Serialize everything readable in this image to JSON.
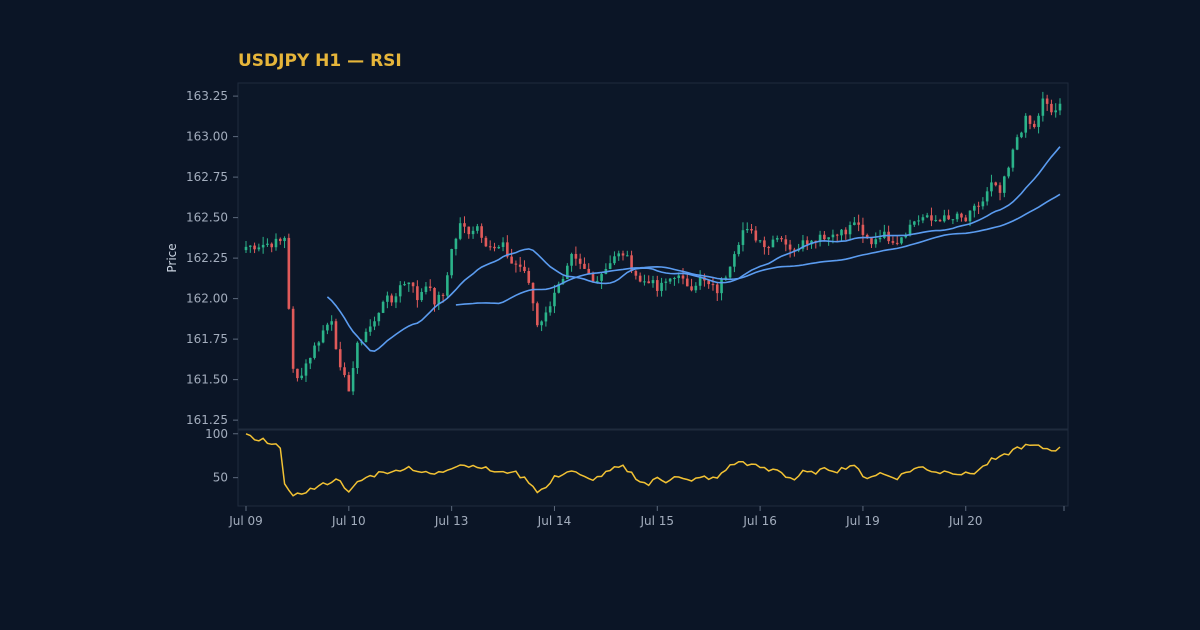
{
  "chart_data": {
    "type": "candlestick",
    "title": "USDJPY H1 — RSI",
    "ylabel": "Price",
    "colors": {
      "background": "#0b1526",
      "plot_background": "#0c1728",
      "border": "#1f2b3d",
      "title": "#e6b53a",
      "up": "#2bb38a",
      "down": "#e05a5a",
      "ma": "#5b9cf0",
      "rsi": "#f2c234"
    },
    "price_axis": {
      "ylim": [
        161.22,
        163.3
      ],
      "ticks": [
        "161.25",
        "161.50",
        "161.75",
        "162.00",
        "162.25",
        "162.50",
        "162.75",
        "163.00",
        "163.25"
      ]
    },
    "rsi_axis": {
      "ylim": [
        20,
        102
      ],
      "ticks": [
        "50",
        "100"
      ]
    },
    "x_ticks": [
      "Jul 09",
      "Jul 10",
      "Jul 13",
      "Jul 14",
      "Jul 15",
      "Jul 16",
      "Jul 19",
      "Jul 20"
    ],
    "x_tick_candle_index": [
      0,
      24,
      48,
      72,
      96,
      120,
      144,
      168
    ],
    "close_anchors": [
      [
        0,
        162.32
      ],
      [
        8,
        162.35
      ],
      [
        9,
        162.38
      ],
      [
        10,
        161.95
      ],
      [
        11,
        161.55
      ],
      [
        12,
        161.5
      ],
      [
        14,
        161.6
      ],
      [
        16,
        161.7
      ],
      [
        18,
        161.8
      ],
      [
        20,
        161.88
      ],
      [
        22,
        161.55
      ],
      [
        24,
        161.45
      ],
      [
        26,
        161.7
      ],
      [
        28,
        161.8
      ],
      [
        30,
        161.85
      ],
      [
        32,
        162.0
      ],
      [
        34,
        161.98
      ],
      [
        36,
        162.08
      ],
      [
        38,
        162.12
      ],
      [
        40,
        162.0
      ],
      [
        42,
        162.1
      ],
      [
        44,
        161.98
      ],
      [
        46,
        162.02
      ],
      [
        48,
        162.3
      ],
      [
        50,
        162.45
      ],
      [
        52,
        162.42
      ],
      [
        54,
        162.45
      ],
      [
        56,
        162.35
      ],
      [
        58,
        162.3
      ],
      [
        60,
        162.32
      ],
      [
        62,
        162.22
      ],
      [
        64,
        162.2
      ],
      [
        66,
        162.1
      ],
      [
        68,
        161.85
      ],
      [
        70,
        161.9
      ],
      [
        72,
        162.05
      ],
      [
        74,
        162.1
      ],
      [
        76,
        162.25
      ],
      [
        78,
        162.2
      ],
      [
        80,
        162.15
      ],
      [
        82,
        162.12
      ],
      [
        84,
        162.2
      ],
      [
        86,
        162.25
      ],
      [
        88,
        162.28
      ],
      [
        90,
        162.2
      ],
      [
        92,
        162.1
      ],
      [
        94,
        162.12
      ],
      [
        96,
        162.05
      ],
      [
        98,
        162.1
      ],
      [
        100,
        162.15
      ],
      [
        102,
        162.1
      ],
      [
        104,
        162.08
      ],
      [
        106,
        162.12
      ],
      [
        108,
        162.08
      ],
      [
        110,
        162.05
      ],
      [
        112,
        162.15
      ],
      [
        114,
        162.3
      ],
      [
        116,
        162.42
      ],
      [
        118,
        162.4
      ],
      [
        120,
        162.36
      ],
      [
        122,
        162.33
      ],
      [
        124,
        162.4
      ],
      [
        126,
        162.35
      ],
      [
        128,
        162.28
      ],
      [
        130,
        162.38
      ],
      [
        132,
        162.35
      ],
      [
        134,
        162.4
      ],
      [
        136,
        162.38
      ],
      [
        138,
        162.42
      ],
      [
        140,
        162.4
      ],
      [
        142,
        162.48
      ],
      [
        144,
        162.38
      ],
      [
        146,
        162.35
      ],
      [
        148,
        162.4
      ],
      [
        150,
        162.38
      ],
      [
        152,
        162.36
      ],
      [
        154,
        162.42
      ],
      [
        156,
        162.48
      ],
      [
        158,
        162.5
      ],
      [
        160,
        162.48
      ],
      [
        162,
        162.5
      ],
      [
        164,
        162.48
      ],
      [
        166,
        162.5
      ],
      [
        168,
        162.48
      ],
      [
        170,
        162.55
      ],
      [
        172,
        162.6
      ],
      [
        174,
        162.7
      ],
      [
        176,
        162.65
      ],
      [
        178,
        162.8
      ],
      [
        180,
        163.0
      ],
      [
        182,
        163.1
      ],
      [
        184,
        163.05
      ],
      [
        186,
        163.22
      ],
      [
        188,
        163.15
      ],
      [
        190,
        163.18
      ]
    ],
    "rsi_anchors": [
      [
        0,
        100
      ],
      [
        2,
        92
      ],
      [
        4,
        93
      ],
      [
        5,
        88
      ],
      [
        7,
        86
      ],
      [
        8,
        86
      ],
      [
        9,
        45
      ],
      [
        10,
        35
      ],
      [
        11,
        27
      ],
      [
        12,
        30
      ],
      [
        14,
        35
      ],
      [
        16,
        38
      ],
      [
        18,
        42
      ],
      [
        20,
        46
      ],
      [
        22,
        48
      ],
      [
        24,
        32
      ],
      [
        26,
        44
      ],
      [
        28,
        50
      ],
      [
        30,
        53
      ],
      [
        32,
        58
      ],
      [
        34,
        55
      ],
      [
        36,
        60
      ],
      [
        38,
        62
      ],
      [
        40,
        58
      ],
      [
        42,
        55
      ],
      [
        44,
        54
      ],
      [
        46,
        57
      ],
      [
        48,
        62
      ],
      [
        50,
        66
      ],
      [
        52,
        63
      ],
      [
        54,
        64
      ],
      [
        56,
        60
      ],
      [
        58,
        57
      ],
      [
        60,
        55
      ],
      [
        62,
        58
      ],
      [
        64,
        52
      ],
      [
        66,
        46
      ],
      [
        68,
        35
      ],
      [
        70,
        38
      ],
      [
        72,
        50
      ],
      [
        74,
        55
      ],
      [
        76,
        58
      ],
      [
        78,
        52
      ],
      [
        80,
        48
      ],
      [
        82,
        50
      ],
      [
        84,
        55
      ],
      [
        86,
        60
      ],
      [
        88,
        62
      ],
      [
        90,
        55
      ],
      [
        92,
        46
      ],
      [
        94,
        42
      ],
      [
        96,
        50
      ],
      [
        98,
        46
      ],
      [
        100,
        52
      ],
      [
        102,
        48
      ],
      [
        104,
        45
      ],
      [
        106,
        52
      ],
      [
        108,
        48
      ],
      [
        110,
        50
      ],
      [
        112,
        60
      ],
      [
        114,
        66
      ],
      [
        116,
        68
      ],
      [
        118,
        64
      ],
      [
        120,
        62
      ],
      [
        122,
        58
      ],
      [
        124,
        60
      ],
      [
        126,
        52
      ],
      [
        128,
        48
      ],
      [
        130,
        56
      ],
      [
        132,
        55
      ],
      [
        134,
        58
      ],
      [
        136,
        60
      ],
      [
        138,
        58
      ],
      [
        140,
        62
      ],
      [
        142,
        65
      ],
      [
        144,
        50
      ],
      [
        146,
        52
      ],
      [
        148,
        55
      ],
      [
        150,
        52
      ],
      [
        152,
        50
      ],
      [
        154,
        56
      ],
      [
        156,
        60
      ],
      [
        158,
        62
      ],
      [
        160,
        58
      ],
      [
        162,
        56
      ],
      [
        164,
        58
      ],
      [
        166,
        55
      ],
      [
        168,
        54
      ],
      [
        170,
        56
      ],
      [
        172,
        62
      ],
      [
        174,
        70
      ],
      [
        176,
        72
      ],
      [
        178,
        78
      ],
      [
        180,
        84
      ],
      [
        182,
        86
      ],
      [
        184,
        86
      ],
      [
        186,
        84
      ],
      [
        188,
        82
      ],
      [
        190,
        83
      ]
    ],
    "series": [
      {
        "type": "candles",
        "count": 191
      },
      {
        "type": "ma",
        "period": 20
      },
      {
        "type": "ma",
        "period": 50
      },
      {
        "type": "rsi",
        "period": 14
      }
    ],
    "grid": false,
    "legend": "none"
  }
}
